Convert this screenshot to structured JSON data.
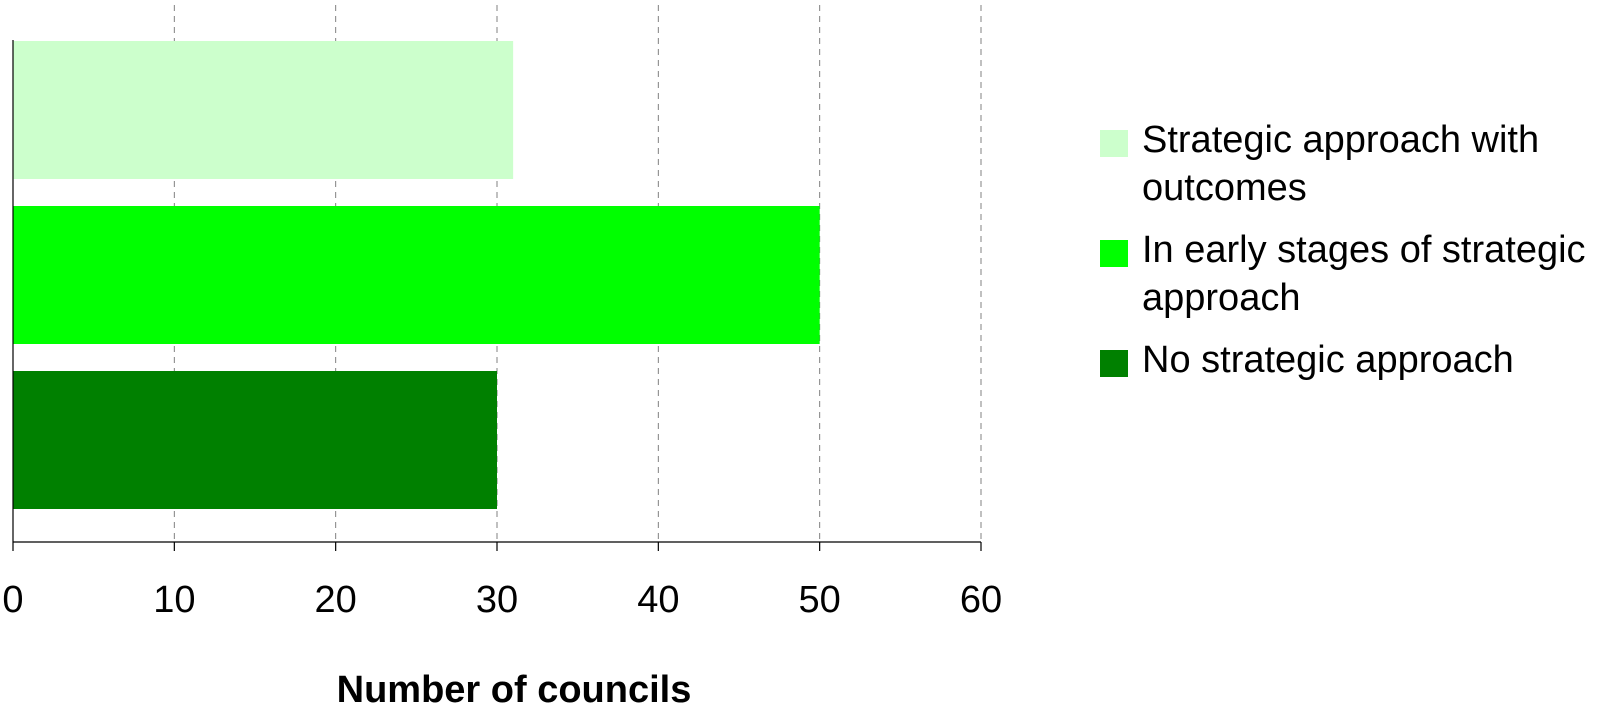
{
  "chart_data": {
    "type": "bar",
    "orientation": "horizontal",
    "xlabel": "Number of councils",
    "ylabel": "",
    "xlim": [
      0,
      60
    ],
    "xticks": [
      0,
      10,
      20,
      30,
      40,
      50,
      60
    ],
    "grid": "vertical dashed",
    "legend_position": "right",
    "series": [
      {
        "name": "Strategic approach with outcomes",
        "value": 31,
        "color": "#ccffcc"
      },
      {
        "name": "In early stages of strategic approach",
        "value": 50,
        "color": "#00ff00"
      },
      {
        "name": "No strategic approach",
        "value": 30,
        "color": "#008000"
      }
    ]
  }
}
